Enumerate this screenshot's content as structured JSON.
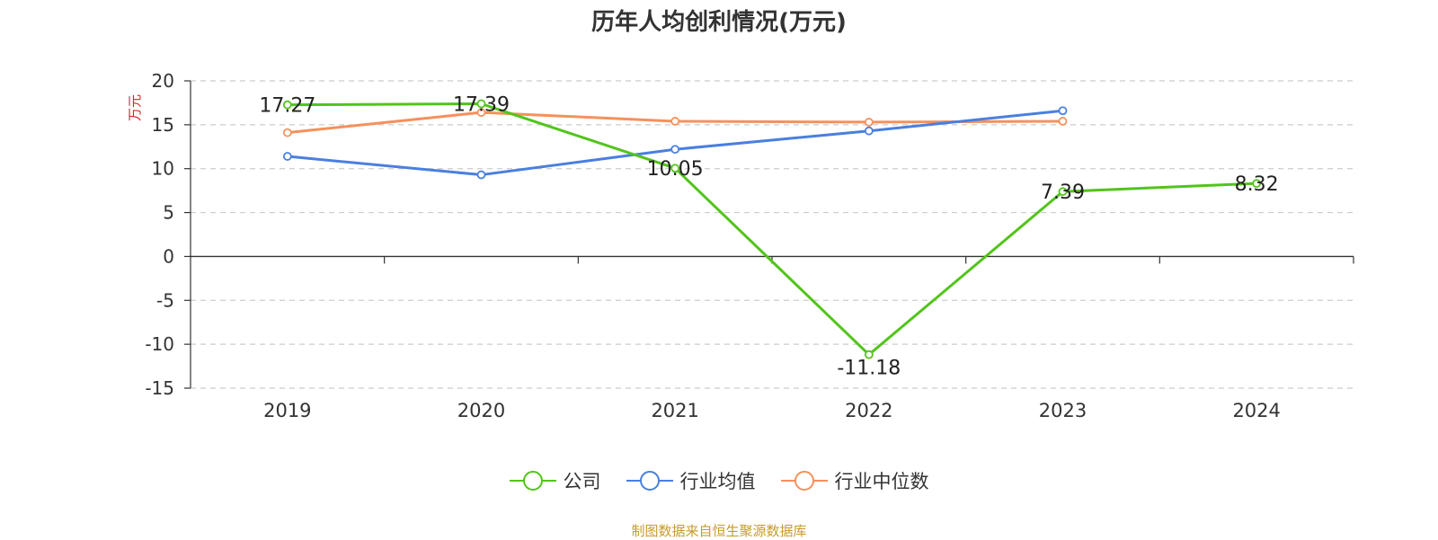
{
  "title": "历年人均创利情况(万元)",
  "source": "制图数据来自恒生聚源数据库",
  "chart_data": {
    "type": "line",
    "categories": [
      "2019",
      "2020",
      "2021",
      "2022",
      "2023",
      "2024"
    ],
    "ylabel": "万元",
    "ylim": [
      -15,
      20
    ],
    "yticks": [
      20,
      15,
      10,
      5,
      0,
      -5,
      -10,
      -15
    ],
    "grid": true,
    "legend_placement": "bottom-center",
    "series": [
      {
        "name": "公司",
        "color": "#52c41a",
        "values": [
          17.27,
          17.39,
          10.05,
          -11.18,
          7.39,
          8.32
        ],
        "labels": [
          "17.27",
          "17.39",
          "10.05",
          "-11.18",
          "7.39",
          "8.32"
        ]
      },
      {
        "name": "行业均值",
        "color": "#4a7fe0",
        "values": [
          11.4,
          9.3,
          12.2,
          14.3,
          16.6,
          null
        ]
      },
      {
        "name": "行业中位数",
        "color": "#f5915c",
        "values": [
          14.1,
          16.4,
          15.4,
          15.3,
          15.4,
          null
        ]
      }
    ]
  }
}
